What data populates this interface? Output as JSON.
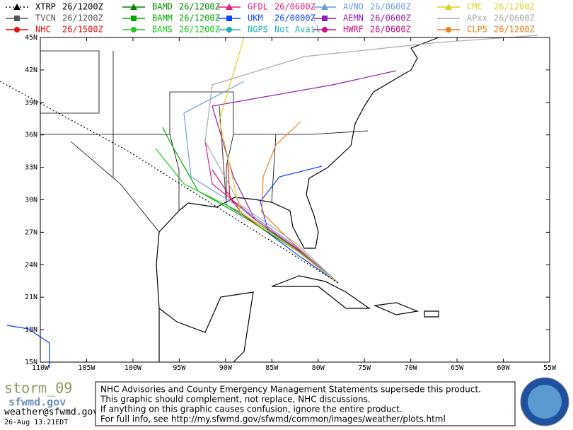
{
  "legend": [
    {
      "model": "XTRP",
      "time": "26/1200Z",
      "color": "#000000",
      "symbol": "triangle",
      "dashed": true
    },
    {
      "model": "TVCN",
      "time": "26/1200Z",
      "color": "#555555",
      "symbol": "square"
    },
    {
      "model": "NHC",
      "time": "26/1500Z",
      "color": "#ee1111",
      "symbol": "circle"
    },
    {
      "model": "BAMD",
      "time": "26/1200Z",
      "color": "#008800",
      "symbol": "triangle"
    },
    {
      "model": "BAMM",
      "time": "26/1200Z",
      "color": "#00aa00",
      "symbol": "square"
    },
    {
      "model": "BAMS",
      "time": "26/1200Z",
      "color": "#22cc22",
      "symbol": "circle"
    },
    {
      "model": "GFDL",
      "time": "26/0600Z",
      "color": "#e0207a",
      "symbol": "triangle"
    },
    {
      "model": "UKM",
      "time": "26/0000Z",
      "color": "#1144ff",
      "symbol": "square"
    },
    {
      "model": "NGPS",
      "time": "Not Avail",
      "color": "#20b0b0",
      "symbol": "circle"
    },
    {
      "model": "AVNO",
      "time": "26/0600Z",
      "color": "#6a9ee0",
      "symbol": "triangle"
    },
    {
      "model": "AEMN",
      "time": "26/0600Z",
      "color": "#9020b0",
      "symbol": "square"
    },
    {
      "model": "HWRF",
      "time": "26/0600Z",
      "color": "#d01080",
      "symbol": "circle"
    },
    {
      "model": "CMC",
      "time": "26/1200Z",
      "color": "#e0d020",
      "symbol": "triangle"
    },
    {
      "model": "APxx",
      "time": "26/0600Z",
      "color": "#aaaaaa",
      "symbol": "none"
    },
    {
      "model": "CLP5",
      "time": "26/1200Z",
      "color": "#f08020",
      "symbol": "circle"
    }
  ],
  "map": {
    "lat_labels": [
      "45N",
      "42N",
      "39N",
      "36N",
      "33N",
      "30N",
      "27N",
      "24N",
      "21N",
      "18N",
      "15N"
    ],
    "lon_labels": [
      "110W",
      "105W",
      "100W",
      "95W",
      "90W",
      "85W",
      "80W",
      "75W",
      "70W",
      "65W",
      "60W",
      "55W"
    ]
  },
  "footer": {
    "storm": "storm_09",
    "logo": "sfwmd.gov",
    "email": "weather@sfwmd.gov",
    "timestamp": "26-Aug 13:21EDT",
    "notice": [
      "NHC Advisories and County Emergency Management Statements supersede this product.",
      "This graphic should complement, not replace, NHC discussions.",
      "If anything on this graphic causes confusion, ignore the entire product.",
      "For full info, see  http://my.sfwmd.gov/sfwmd/common/images/weather/plots.html"
    ]
  }
}
